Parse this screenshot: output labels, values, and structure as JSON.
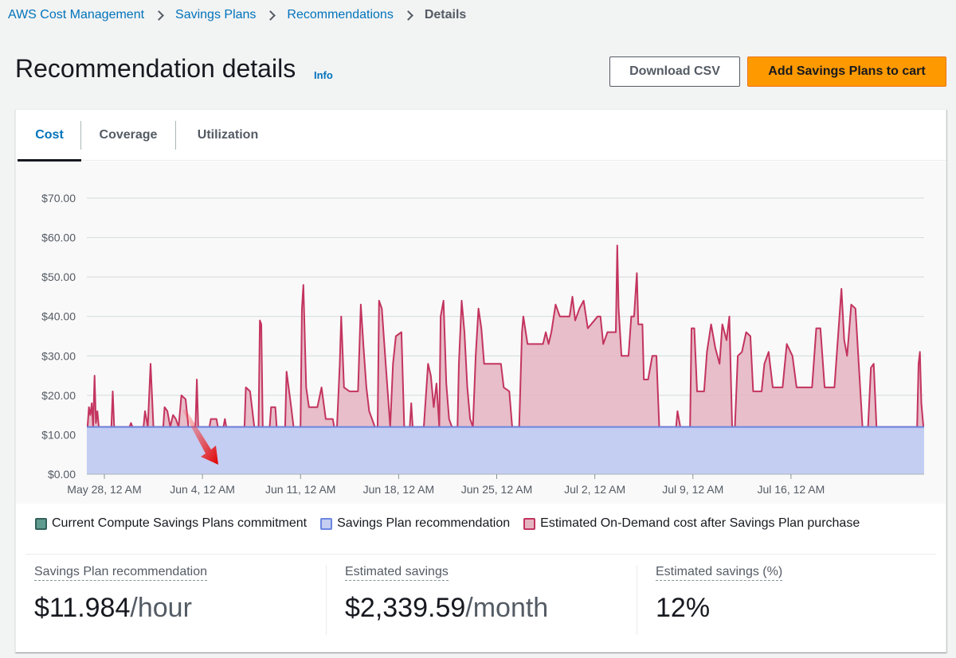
{
  "breadcrumb": {
    "items": [
      "AWS Cost Management",
      "Savings Plans",
      "Recommendations"
    ],
    "current": "Details"
  },
  "header": {
    "title": "Recommendation details",
    "info_label": "Info",
    "download_label": "Download CSV",
    "add_to_cart_label": "Add Savings Plans to cart"
  },
  "tabs": [
    "Cost",
    "Coverage",
    "Utilization"
  ],
  "active_tab": "Cost",
  "colors": {
    "accent": "#0073bb",
    "primary_button": "#ff9900",
    "commitment": "#5f9c8f",
    "recommendation_fill": "#c4cdf2",
    "recommendation_line": "#6b86e0",
    "ondemand_fill": "#e4b4c1",
    "ondemand_line": "#c3345f"
  },
  "chart_data": {
    "type": "area",
    "title": "",
    "xlabel": "",
    "ylabel": "",
    "ylim": [
      0,
      70
    ],
    "y_tick_labels": [
      "$0.00",
      "$10.00",
      "$20.00",
      "$30.00",
      "$40.00",
      "$50.00",
      "$60.00",
      "$70.00"
    ],
    "x_tick_labels": [
      "May 28, 12 AM",
      "Jun 4, 12 AM",
      "Jun 11, 12 AM",
      "Jun 18, 12 AM",
      "Jun 25, 12 AM",
      "Jul 2, 12 AM",
      "Jul 9, 12 AM",
      "Jul 16, 12 AM"
    ],
    "x_days_range": [
      -1.25,
      58.5
    ],
    "x_tick_days": [
      0,
      7,
      14,
      21,
      28,
      35,
      42,
      49
    ],
    "grid": true,
    "legend_position": "bottom",
    "series": [
      {
        "name": "Current Compute Savings Plans commitment",
        "values": []
      },
      {
        "name": "Savings Plan recommendation",
        "constant": 11.984
      },
      {
        "name": "Estimated On-Demand cost after Savings Plan purchase",
        "points": [
          [
            -1.2,
            12
          ],
          [
            -1.1,
            17
          ],
          [
            -1.0,
            15
          ],
          [
            -0.9,
            18
          ],
          [
            -0.8,
            12
          ],
          [
            -0.7,
            25
          ],
          [
            -0.6,
            13
          ],
          [
            -0.5,
            16
          ],
          [
            -0.4,
            12
          ],
          [
            0.5,
            12
          ],
          [
            0.6,
            21
          ],
          [
            0.7,
            12
          ],
          [
            1.8,
            12
          ],
          [
            1.9,
            13
          ],
          [
            2.0,
            12
          ],
          [
            2.8,
            12
          ],
          [
            2.9,
            16
          ],
          [
            3.1,
            12
          ],
          [
            3.3,
            28
          ],
          [
            3.5,
            12
          ],
          [
            4.2,
            12
          ],
          [
            4.3,
            17
          ],
          [
            4.5,
            16
          ],
          [
            4.7,
            12
          ],
          [
            4.9,
            15
          ],
          [
            5.1,
            14
          ],
          [
            5.3,
            12
          ],
          [
            5.5,
            20
          ],
          [
            5.8,
            19
          ],
          [
            6.0,
            12
          ],
          [
            6.5,
            12
          ],
          [
            6.6,
            24
          ],
          [
            6.7,
            12
          ],
          [
            7.5,
            12
          ],
          [
            7.6,
            14
          ],
          [
            8.0,
            14
          ],
          [
            8.1,
            12
          ],
          [
            8.5,
            12
          ],
          [
            8.6,
            14
          ],
          [
            8.7,
            12
          ],
          [
            10.0,
            12
          ],
          [
            10.1,
            22
          ],
          [
            10.4,
            21
          ],
          [
            10.7,
            12
          ],
          [
            11.0,
            12
          ],
          [
            11.1,
            39
          ],
          [
            11.2,
            38
          ],
          [
            11.3,
            12
          ],
          [
            11.8,
            12
          ],
          [
            11.9,
            17
          ],
          [
            12.2,
            17
          ],
          [
            12.3,
            12
          ],
          [
            12.9,
            12
          ],
          [
            13.0,
            26
          ],
          [
            13.3,
            18
          ],
          [
            13.5,
            12
          ],
          [
            14.0,
            12
          ],
          [
            14.1,
            42
          ],
          [
            14.2,
            48
          ],
          [
            14.4,
            22
          ],
          [
            14.6,
            17
          ],
          [
            15.2,
            17
          ],
          [
            15.5,
            22
          ],
          [
            15.8,
            14
          ],
          [
            16.3,
            14
          ],
          [
            16.4,
            12
          ],
          [
            16.6,
            12
          ],
          [
            16.8,
            28
          ],
          [
            16.9,
            40
          ],
          [
            17.1,
            22
          ],
          [
            17.5,
            21
          ],
          [
            18.1,
            21
          ],
          [
            18.3,
            43
          ],
          [
            18.5,
            32
          ],
          [
            18.7,
            22
          ],
          [
            18.9,
            16
          ],
          [
            19.3,
            12
          ],
          [
            19.5,
            12
          ],
          [
            19.6,
            44
          ],
          [
            19.8,
            42
          ],
          [
            20.1,
            27
          ],
          [
            20.4,
            12
          ],
          [
            20.6,
            28
          ],
          [
            20.8,
            35
          ],
          [
            21.2,
            36
          ],
          [
            21.4,
            12
          ],
          [
            21.8,
            12
          ],
          [
            21.9,
            18
          ],
          [
            22.0,
            12
          ],
          [
            22.8,
            12
          ],
          [
            23.1,
            28
          ],
          [
            23.3,
            25
          ],
          [
            23.5,
            17
          ],
          [
            23.7,
            23
          ],
          [
            23.9,
            12
          ],
          [
            24.0,
            40
          ],
          [
            24.2,
            44
          ],
          [
            24.4,
            23
          ],
          [
            24.6,
            14
          ],
          [
            24.8,
            12
          ],
          [
            25.2,
            12
          ],
          [
            25.3,
            28
          ],
          [
            25.5,
            44
          ],
          [
            25.7,
            36
          ],
          [
            25.9,
            22
          ],
          [
            26.1,
            14
          ],
          [
            26.3,
            12
          ],
          [
            26.5,
            30
          ],
          [
            26.7,
            42
          ],
          [
            26.9,
            37
          ],
          [
            27.1,
            28
          ],
          [
            28.3,
            28
          ],
          [
            28.5,
            22
          ],
          [
            28.9,
            21
          ],
          [
            29.1,
            12
          ],
          [
            29.6,
            12
          ],
          [
            29.8,
            36
          ],
          [
            29.9,
            40
          ],
          [
            30.2,
            33
          ],
          [
            30.5,
            33
          ],
          [
            31.3,
            33
          ],
          [
            31.5,
            36
          ],
          [
            31.7,
            33
          ],
          [
            31.9,
            36
          ],
          [
            32.2,
            43
          ],
          [
            32.5,
            40
          ],
          [
            32.8,
            40
          ],
          [
            33.2,
            40
          ],
          [
            33.4,
            45
          ],
          [
            33.6,
            39
          ],
          [
            33.9,
            42
          ],
          [
            34.2,
            44
          ],
          [
            34.5,
            37
          ],
          [
            35.2,
            40
          ],
          [
            35.4,
            40
          ],
          [
            35.6,
            33
          ],
          [
            35.9,
            36
          ],
          [
            36.5,
            36
          ],
          [
            36.6,
            58
          ],
          [
            36.7,
            42
          ],
          [
            36.9,
            30
          ],
          [
            37.4,
            30
          ],
          [
            37.6,
            40
          ],
          [
            37.8,
            40
          ],
          [
            38.0,
            51
          ],
          [
            38.1,
            38
          ],
          [
            38.4,
            38
          ],
          [
            38.5,
            24
          ],
          [
            38.8,
            24
          ],
          [
            39.1,
            30
          ],
          [
            39.4,
            30
          ],
          [
            39.6,
            12
          ],
          [
            40.8,
            12
          ],
          [
            40.9,
            16
          ],
          [
            41.1,
            12
          ],
          [
            41.8,
            12
          ],
          [
            41.9,
            37
          ],
          [
            42.1,
            37
          ],
          [
            42.3,
            21
          ],
          [
            42.8,
            21
          ],
          [
            43.0,
            31
          ],
          [
            43.3,
            38
          ],
          [
            43.6,
            32
          ],
          [
            43.9,
            28
          ],
          [
            44.1,
            38
          ],
          [
            44.4,
            34
          ],
          [
            44.6,
            40
          ],
          [
            44.8,
            12
          ],
          [
            45.0,
            12
          ],
          [
            45.2,
            30
          ],
          [
            45.5,
            31
          ],
          [
            45.8,
            36
          ],
          [
            46.1,
            35
          ],
          [
            46.3,
            21
          ],
          [
            46.9,
            21
          ],
          [
            47.1,
            28
          ],
          [
            47.4,
            31
          ],
          [
            47.7,
            22
          ],
          [
            48.4,
            22
          ],
          [
            48.7,
            33
          ],
          [
            49.1,
            30
          ],
          [
            49.4,
            22
          ],
          [
            50.5,
            22
          ],
          [
            50.8,
            37
          ],
          [
            51.1,
            37
          ],
          [
            51.4,
            22
          ],
          [
            52.1,
            22
          ],
          [
            52.3,
            32
          ],
          [
            52.6,
            47
          ],
          [
            52.8,
            34
          ],
          [
            53.0,
            30
          ],
          [
            53.3,
            43
          ],
          [
            53.6,
            42
          ],
          [
            53.9,
            24
          ],
          [
            54.1,
            12
          ],
          [
            54.5,
            12
          ],
          [
            54.7,
            27
          ],
          [
            54.9,
            28
          ],
          [
            55.1,
            12
          ],
          [
            58.0,
            12
          ],
          [
            58.1,
            28
          ],
          [
            58.2,
            31
          ],
          [
            58.3,
            18
          ],
          [
            58.45,
            12
          ]
        ]
      }
    ]
  },
  "summary": [
    {
      "label": "Savings Plan recommendation",
      "value": "$11.984",
      "unit": "/hour"
    },
    {
      "label": "Estimated savings",
      "value": "$2,339.59",
      "unit": "/month"
    },
    {
      "label": "Estimated savings (%)",
      "value": "12%",
      "unit": ""
    }
  ]
}
